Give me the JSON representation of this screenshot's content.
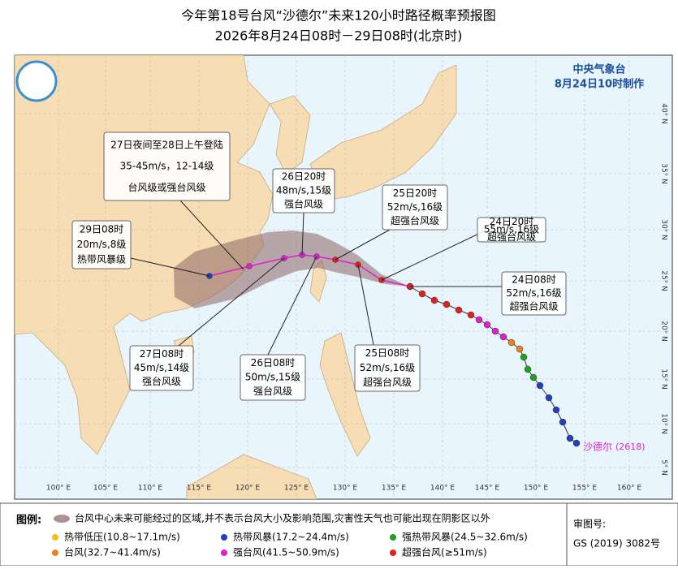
{
  "header": {
    "title": "今年第18号台风“沙德尔”未来120小时路径概率预报图",
    "subtitle": "2026年8月24日08时－29日08时(北京时)"
  },
  "agency": {
    "name": "中央气象台",
    "made": "8月24日10时制作"
  },
  "lon_labels": [
    "100° E",
    "105° E",
    "110° E",
    "115° E",
    "120° E",
    "125° E",
    "130° E",
    "135° E",
    "140° E",
    "145° E",
    "150° E",
    "155° E",
    "160° E"
  ],
  "lat_labels": [
    "5° N",
    "10° N",
    "15° N",
    "20° N",
    "25° N",
    "30° N",
    "35° N",
    "40° N"
  ],
  "callouts": [
    [
      "27日夜间至28日上午登陆",
      "35-45m/s，12-14级",
      "台风级或强台风级"
    ],
    [
      "26日20时",
      "48m/s,15级",
      "强台风级"
    ],
    [
      "25日20时",
      "52m/s,16级",
      "超强台风级"
    ],
    [
      "24日20时",
      "55m/s,16级",
      "超强台风级"
    ],
    [
      "24日08时",
      "52m/s,16级",
      "超强台风级"
    ],
    [
      "25日08时",
      "52m/s,16级",
      "超强台风级"
    ],
    [
      "26日08时",
      "50m/s,15级",
      "强台风级"
    ],
    [
      "27日08时",
      "45m/s,14级",
      "强台风级"
    ],
    [
      "29日08时",
      "20m/s,8级",
      "热带风暴级"
    ]
  ],
  "storm": {
    "name": "沙德尔",
    "id": "(2618)"
  },
  "legend": {
    "label": "图例:",
    "cone": "台风中心未来可能经过的区域,并不表示台风大小及影响范围,灾害性天气也可能出现在阴影区以外",
    "items": [
      "热带低压(10.8~17.1m/s)",
      "热带风暴(17.2~24.4m/s)",
      "强热带风暴(24.5~32.6m/s)",
      "台风(32.7~41.4m/s)",
      "强台风(41.5~50.9m/s)",
      "超强台风(≥51m/s)"
    ]
  },
  "approval": {
    "label": "审图号:",
    "number": "GS (2019) 3082号"
  }
}
